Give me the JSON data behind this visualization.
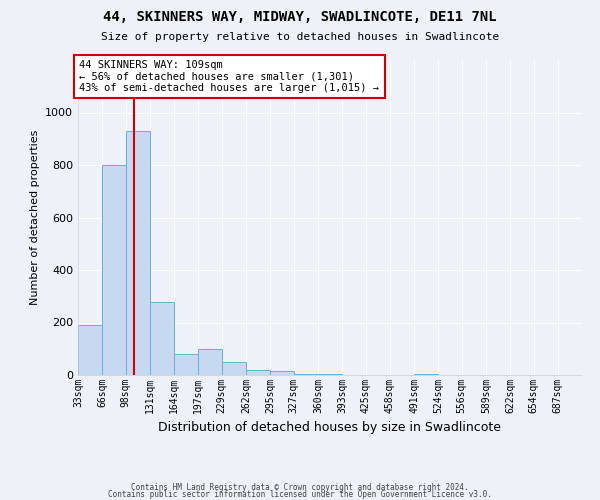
{
  "title1": "44, SKINNERS WAY, MIDWAY, SWADLINCOTE, DE11 7NL",
  "title2": "Size of property relative to detached houses in Swadlincote",
  "xlabel": "Distribution of detached houses by size in Swadlincote",
  "ylabel": "Number of detached properties",
  "bin_labels": [
    "33sqm",
    "66sqm",
    "98sqm",
    "131sqm",
    "164sqm",
    "197sqm",
    "229sqm",
    "262sqm",
    "295sqm",
    "327sqm",
    "360sqm",
    "393sqm",
    "425sqm",
    "458sqm",
    "491sqm",
    "524sqm",
    "556sqm",
    "589sqm",
    "622sqm",
    "654sqm",
    "687sqm"
  ],
  "bin_edges": [
    33,
    66,
    98,
    131,
    164,
    197,
    229,
    262,
    295,
    327,
    360,
    393,
    425,
    458,
    491,
    524,
    556,
    589,
    622,
    654,
    687,
    720
  ],
  "bar_heights": [
    190,
    800,
    930,
    280,
    80,
    100,
    50,
    20,
    15,
    5,
    5,
    0,
    0,
    0,
    5,
    0,
    0,
    0,
    0,
    0,
    0
  ],
  "bar_color": "#c6d9f0",
  "bar_edge_color": "#6baed6",
  "property_size": 109,
  "red_line_color": "#cc0000",
  "annotation_text": "44 SKINNERS WAY: 109sqm\n← 56% of detached houses are smaller (1,301)\n43% of semi-detached houses are larger (1,015) →",
  "annotation_box_color": "#ffffff",
  "annotation_box_edge": "#cc0000",
  "ylim": [
    0,
    1200
  ],
  "yticks": [
    0,
    200,
    400,
    600,
    800,
    1000
  ],
  "footer1": "Contains HM Land Registry data © Crown copyright and database right 2024.",
  "footer2": "Contains public sector information licensed under the Open Government Licence v3.0.",
  "bg_color": "#edf2f9"
}
